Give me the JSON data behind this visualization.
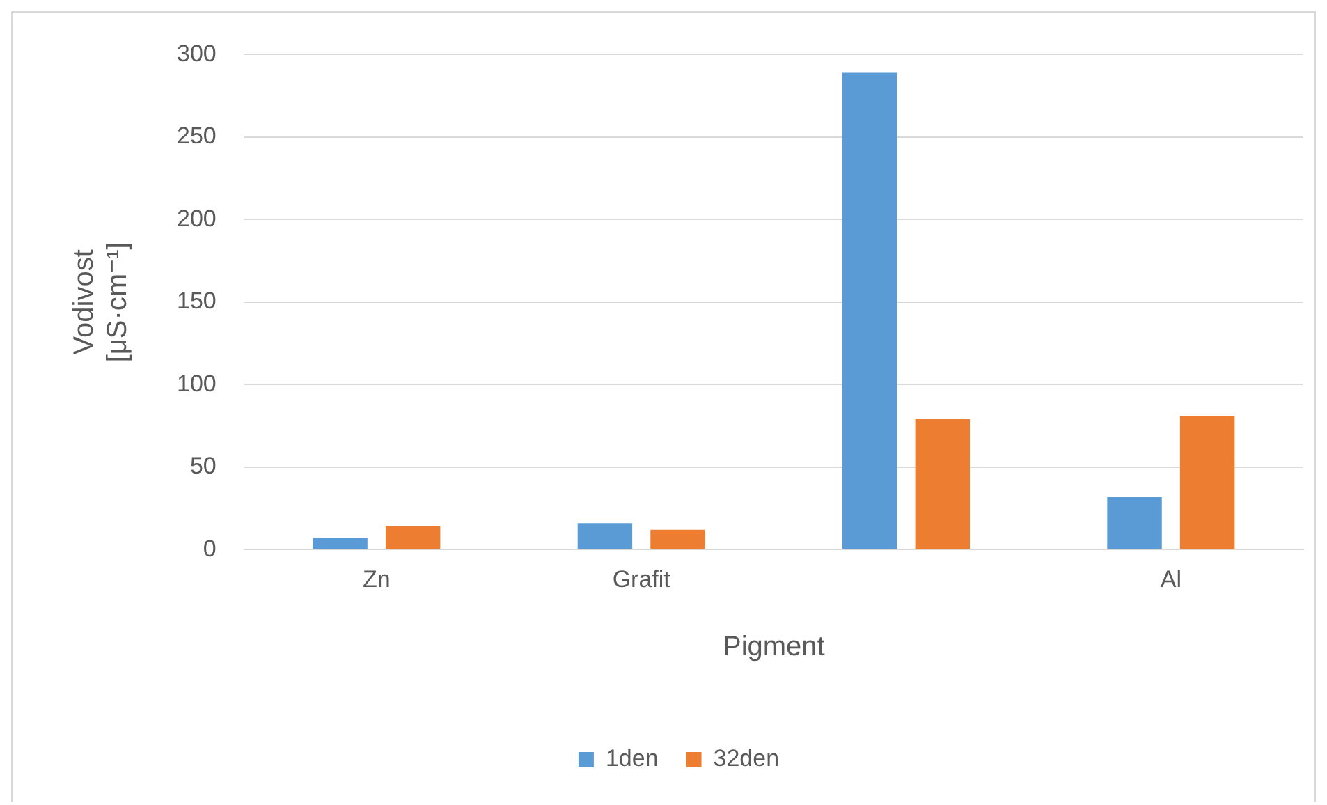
{
  "chart_data": {
    "type": "bar",
    "xlabel": "Pigment",
    "ylabel": "Vodivost [μS·cm⁻¹]",
    "categories": [
      "Zn",
      "Grafit",
      null,
      "Al"
    ],
    "series": [
      {
        "name": "1den",
        "color": "#5b9bd5",
        "values": [
          7,
          16,
          289,
          32
        ]
      },
      {
        "name": "32den",
        "color": "#ed7d31",
        "values": [
          14,
          12,
          79,
          81
        ]
      }
    ],
    "ylim": [
      0,
      300
    ],
    "yticks": [
      0,
      50,
      100,
      150,
      200,
      250,
      300
    ],
    "grid": "y",
    "legend": "bottom"
  }
}
